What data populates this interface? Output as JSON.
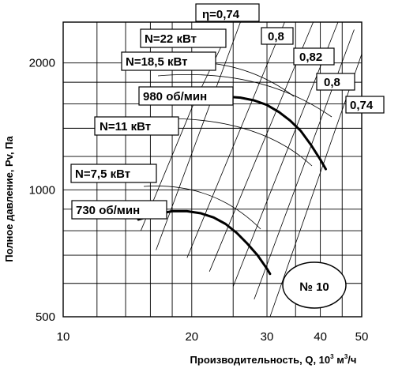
{
  "chart_data": {
    "type": "line",
    "title": "",
    "xlabel": "Производительность, Q, 10",
    "xlabel_sup": "3",
    "xlabel_unit": " м",
    "xlabel_unit_sup": "3",
    "xlabel_tail": "/ч",
    "ylabel": "Полное давление, Pv, Па",
    "x_scale": "log",
    "y_scale": "log",
    "xlim": [
      10,
      50
    ],
    "ylim": [
      500,
      2500
    ],
    "x_ticks": [
      10,
      20,
      30,
      40,
      50
    ],
    "y_ticks": [
      500,
      1000,
      2000
    ],
    "grid": true,
    "badge": "№ 10",
    "fan_curves": [
      {
        "name": "980 об/мин",
        "x": [
          20.2,
          22,
          24,
          26,
          28,
          30,
          32,
          34,
          36,
          38,
          40,
          41.2
        ],
        "y": [
          1600,
          1650,
          1665,
          1655,
          1630,
          1590,
          1530,
          1460,
          1380,
          1280,
          1180,
          1120
        ]
      },
      {
        "name": "730 об/мин",
        "x": [
          15,
          16.5,
          18,
          19.5,
          21,
          22.5,
          24,
          25.5,
          27,
          28.5,
          30,
          30.5
        ],
        "y": [
          850,
          875,
          890,
          890,
          880,
          860,
          830,
          790,
          745,
          700,
          650,
          632
        ]
      }
    ],
    "efficiency_labels": [
      "η=0,74",
      "0,8",
      "0,82",
      "0,8",
      "0,74"
    ],
    "power_labels": [
      "N=22 кВт",
      "N=18,5 кВт",
      "N=11 кВт",
      "N=7,5 кВт"
    ],
    "rpm_labels": [
      "980 об/мин",
      "730 об/мин"
    ]
  }
}
